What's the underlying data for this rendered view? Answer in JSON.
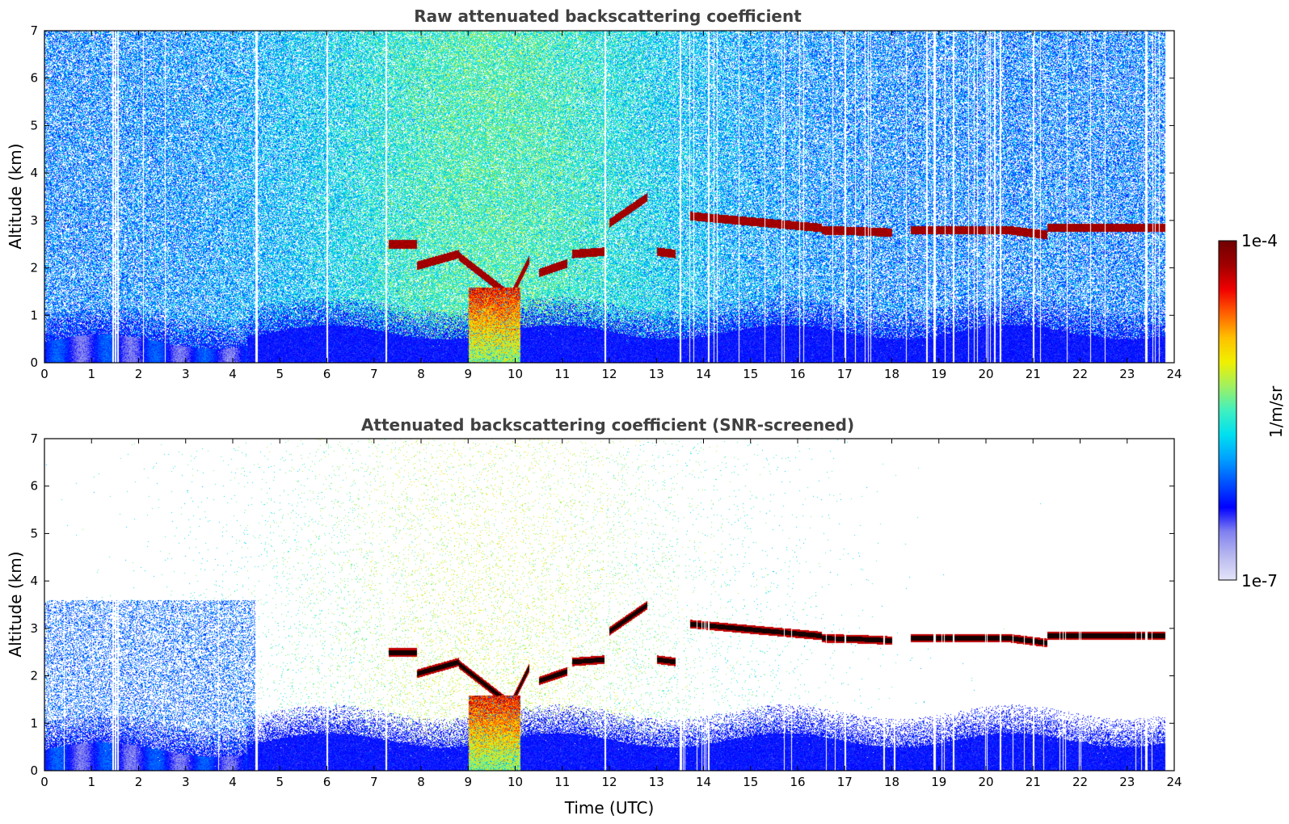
{
  "chart_data": [
    {
      "type": "heatmap",
      "title": "Raw attenuated backscattering coefficient",
      "xlabel": "",
      "ylabel": "Altitude (km)",
      "xlim": [
        0,
        24
      ],
      "ylim": [
        0,
        7
      ],
      "xticks": [
        "0",
        "1",
        "2",
        "3",
        "4",
        "5",
        "6",
        "7",
        "8",
        "9",
        "10",
        "11",
        "12",
        "13",
        "14",
        "15",
        "16",
        "17",
        "18",
        "19",
        "20",
        "21",
        "22",
        "23",
        "24"
      ],
      "yticks": [
        "0",
        "1",
        "2",
        "3",
        "4",
        "5",
        "6",
        "7"
      ],
      "screened": false,
      "features": {
        "cloud_layers": [
          {
            "start": 7.3,
            "end": 7.9,
            "alt": [
              2.5,
              2.5
            ]
          },
          {
            "start": 7.9,
            "end": 8.8,
            "alt": [
              2.05,
              2.3
            ]
          },
          {
            "start": 8.8,
            "end": 9.9,
            "alt": [
              2.25,
              1.4
            ]
          },
          {
            "start": 9.9,
            "end": 10.3,
            "alt": [
              1.4,
              2.2
            ]
          },
          {
            "start": 10.5,
            "end": 11.1,
            "alt": [
              1.9,
              2.1
            ]
          },
          {
            "start": 11.2,
            "end": 11.9,
            "alt": [
              2.3,
              2.35
            ]
          },
          {
            "start": 12.0,
            "end": 12.8,
            "alt": [
              2.95,
              3.5
            ]
          },
          {
            "start": 13.0,
            "end": 13.4,
            "alt": [
              2.35,
              2.3
            ]
          },
          {
            "start": 13.7,
            "end": 16.5,
            "alt": [
              3.1,
              2.85
            ]
          },
          {
            "start": 16.5,
            "end": 17.3,
            "alt": [
              2.8,
              2.78
            ]
          },
          {
            "start": 17.3,
            "end": 18.0,
            "alt": [
              2.78,
              2.75
            ]
          },
          {
            "start": 18.4,
            "end": 20.5,
            "alt": [
              2.8,
              2.8
            ]
          },
          {
            "start": 20.5,
            "end": 21.3,
            "alt": [
              2.8,
              2.7
            ]
          },
          {
            "start": 21.3,
            "end": 23.8,
            "alt": [
              2.85,
              2.85
            ]
          },
          {
            "start": 16.4,
            "end": 16.8,
            "alt": [
              1.25,
              1.2
            ]
          },
          {
            "start": 17.0,
            "end": 17.4,
            "alt": [
              1.1,
              1.05
            ]
          },
          {
            "start": 17.8,
            "end": 18.0,
            "alt": [
              1.15,
              1.15
            ]
          }
        ],
        "precipitation": {
          "start": 9.0,
          "end": 10.1,
          "top_km": 1.6
        },
        "gaps_hours": [
          1.45,
          1.5,
          1.55,
          4.5,
          6.0,
          7.25,
          11.9,
          13.5,
          14.1,
          17.0,
          18.9,
          19.3,
          20.3,
          21.0,
          23.4
        ]
      }
    },
    {
      "type": "heatmap",
      "title": "Attenuated backscattering coefficient (SNR-screened)",
      "xlabel": "Time (UTC)",
      "ylabel": "Altitude (km)",
      "xlim": [
        0,
        24
      ],
      "ylim": [
        0,
        7
      ],
      "xticks": [
        "0",
        "1",
        "2",
        "3",
        "4",
        "5",
        "6",
        "7",
        "8",
        "9",
        "10",
        "11",
        "12",
        "13",
        "14",
        "15",
        "16",
        "17",
        "18",
        "19",
        "20",
        "21",
        "22",
        "23",
        "24"
      ],
      "yticks": [
        "0",
        "1",
        "2",
        "3",
        "4",
        "5",
        "6",
        "7"
      ],
      "screened": true
    }
  ],
  "colorbar": {
    "label": "1/m/sr",
    "max_label": "1e-4",
    "min_label": "1e-7",
    "range": [
      1e-07,
      0.0001
    ],
    "scale": "log",
    "colors": [
      "#e4e4f8",
      "#b8b8f0",
      "#8080f0",
      "#0000ff",
      "#0050ff",
      "#00a0ff",
      "#00e0f0",
      "#40f0c0",
      "#a0f060",
      "#f0f000",
      "#ffc000",
      "#ff6000",
      "#f00000",
      "#a00000",
      "#700000"
    ]
  }
}
